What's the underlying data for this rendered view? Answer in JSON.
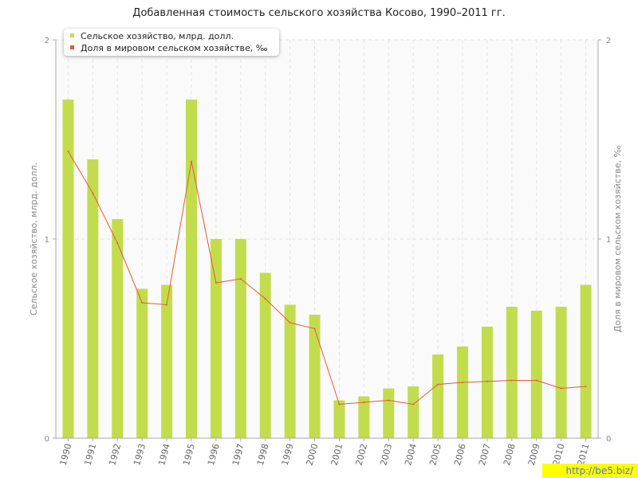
{
  "chart_data": {
    "type": "bar",
    "title": "Добавленная стоимость сельского хозяйства Косово, 1990–2011 гг.",
    "categories": [
      "1990",
      "1991",
      "1992",
      "1993",
      "1994",
      "1995",
      "1996",
      "1997",
      "1998",
      "1999",
      "2000",
      "2001",
      "2002",
      "2003",
      "2004",
      "2005",
      "2006",
      "2007",
      "2008",
      "2009",
      "2010",
      "2011"
    ],
    "series": [
      {
        "name": "Сельское хозяйство, млрд. долл.",
        "type": "bar",
        "axis": "left",
        "color": "#c3dc4e",
        "values": [
          1.7,
          1.4,
          1.1,
          0.75,
          0.77,
          1.7,
          1.0,
          1.0,
          0.83,
          0.67,
          0.62,
          0.19,
          0.21,
          0.25,
          0.26,
          0.42,
          0.46,
          0.56,
          0.66,
          0.64,
          0.66,
          0.77
        ]
      },
      {
        "name": "Доля в мировом сельском хозяйстве, ‰",
        "type": "line",
        "axis": "right",
        "color": "#e05a3a",
        "values": [
          1.44,
          1.23,
          0.98,
          0.68,
          0.67,
          1.39,
          0.78,
          0.8,
          0.7,
          0.58,
          0.55,
          0.17,
          0.18,
          0.19,
          0.17,
          0.27,
          0.28,
          0.285,
          0.29,
          0.29,
          0.25,
          0.26
        ]
      }
    ],
    "ylabel": "Сельское хозяйство, млрд. долл.",
    "y2label": "Доля в мировом сельском хозяйстве, ‰",
    "ylim": [
      0,
      2
    ],
    "y2lim": [
      0,
      2
    ],
    "yticks": [
      "0",
      "1",
      "2"
    ],
    "y2ticks": [
      "0",
      "1",
      "2"
    ],
    "grid": true,
    "legend_position": "top-left"
  },
  "watermark": "http://be5.biz/"
}
